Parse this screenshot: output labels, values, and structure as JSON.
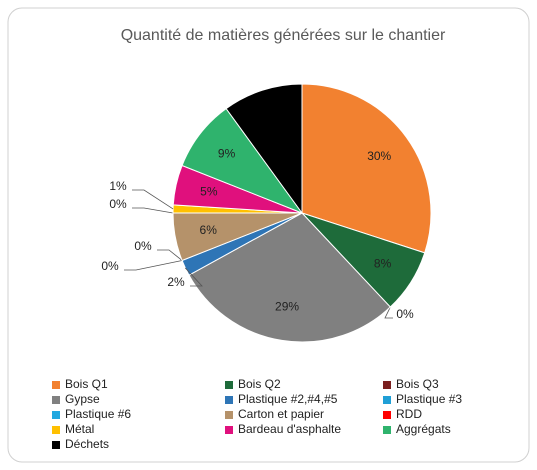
{
  "chart_data": {
    "type": "pie",
    "title": "Quantité de matières générées sur le chantier",
    "categories": [
      "Bois Q1",
      "Bois Q2",
      "Bois Q3",
      "Gypse",
      "Plastique #2,#4,#5",
      "Plastique #3",
      "Plastique #6",
      "Carton et papier",
      "RDD",
      "Métal",
      "Bardeau d'asphalte",
      "Aggrégats",
      "Déchets"
    ],
    "values": [
      30,
      8,
      0,
      29,
      2,
      0,
      0,
      6,
      0,
      1,
      5,
      9,
      10
    ],
    "value_labels": [
      "30%",
      "8%",
      "0%",
      "29%",
      "2%",
      "0%",
      "0%",
      "6%",
      "0%",
      "1%",
      "5%",
      "9%",
      null
    ],
    "colors": [
      "#f28130",
      "#1e6b3a",
      "#7b1f1f",
      "#808080",
      "#2e75b6",
      "#1f9fd6",
      "#22a8e0",
      "#b5926a",
      "#ff0000",
      "#ffc000",
      "#e0107d",
      "#2fb36d",
      "#000000"
    ],
    "legend": "bottom"
  }
}
